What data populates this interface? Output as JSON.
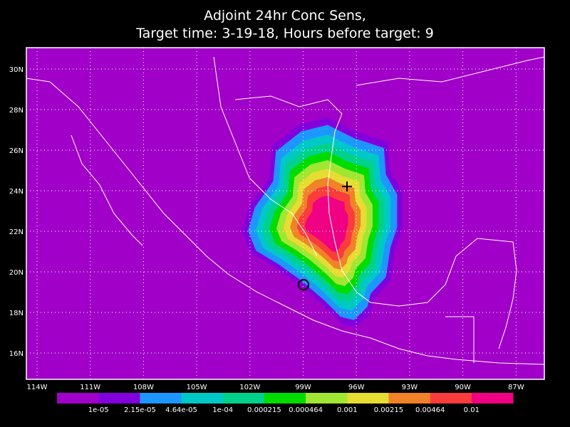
{
  "title": [
    "Adjoint 24hr Conc Sens,",
    "Target time: 3-19-18, Hours before target: 9"
  ],
  "map": {
    "lat_labels": [
      "30N",
      "28N",
      "26N",
      "24N",
      "22N",
      "20N",
      "18N",
      "16N"
    ],
    "lon_labels": [
      "114W",
      "111W",
      "108W",
      "105W",
      "102W",
      "99W",
      "96W",
      "93W",
      "90W",
      "87W"
    ]
  },
  "colorbar": {
    "colors": [
      "#a000c8",
      "#8200dc",
      "#1e96ff",
      "#00c8c8",
      "#00d28c",
      "#00dc00",
      "#a0e632",
      "#e6dc32",
      "#f08228",
      "#fa3c3c",
      "#f00082"
    ],
    "labels": [
      "1e-05",
      "2.15e-05",
      "4.64e-05",
      "1e-04",
      "0.000215",
      "0.000464",
      "0.001",
      "0.00215",
      "0.00464",
      "0.01"
    ]
  }
}
